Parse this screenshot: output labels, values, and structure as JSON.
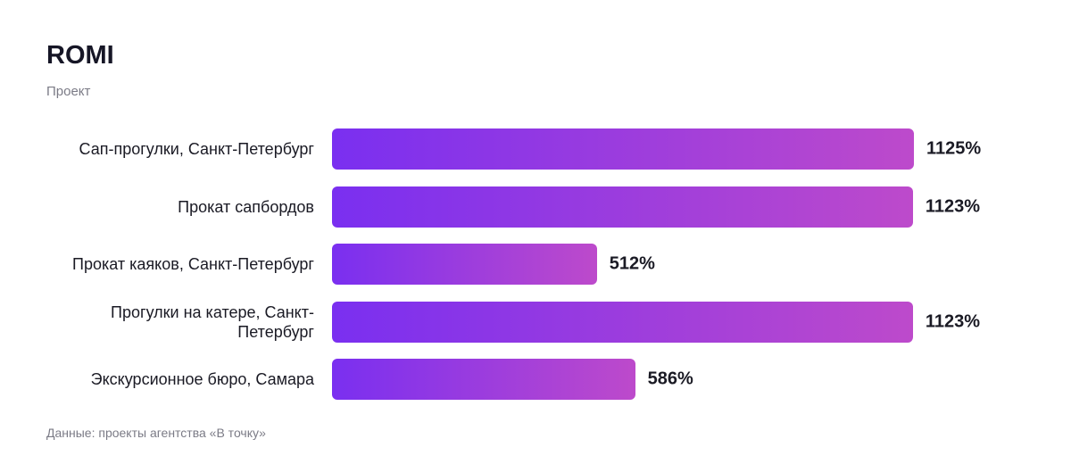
{
  "chart_data": {
    "type": "bar",
    "orientation": "horizontal",
    "title": "ROMI",
    "subtitle": "Проект",
    "note": "Данные: проекты агентства «В точку»",
    "categories": [
      "Сап-прогулки, Санкт-Петербург",
      "Прокат сапбордов",
      "Прокат каяков, Санкт-Петербург",
      "Прогулки на катере, Санкт-Петербург",
      "Экскурсионное бюро, Самара"
    ],
    "values": [
      1125,
      1123,
      512,
      1123,
      586
    ],
    "value_labels": [
      "1125%",
      "1123%",
      "512%",
      "1123%",
      "586%"
    ],
    "gradient": [
      "#7a2ff0",
      "#bd4acb"
    ]
  }
}
